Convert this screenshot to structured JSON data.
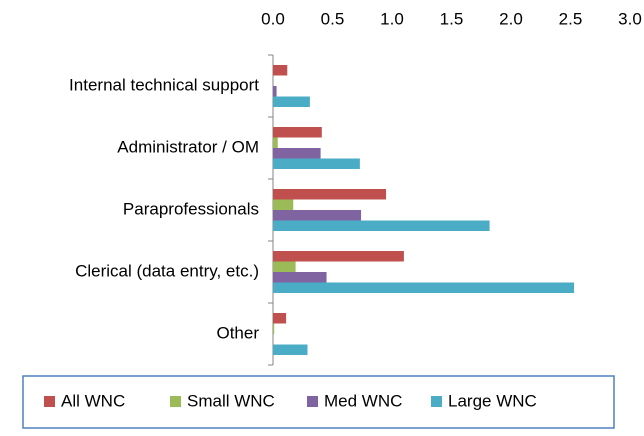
{
  "chart_data": {
    "type": "hbar",
    "categories": [
      "Internal technical support",
      "Administrator / OM",
      "Paraprofessionals",
      "Clerical (data entry, etc.)",
      "Other"
    ],
    "series": [
      {
        "name": "All WNC",
        "color": "#c0504d",
        "values": [
          0.12,
          0.41,
          0.95,
          1.1,
          0.11
        ]
      },
      {
        "name": "Small WNC",
        "color": "#9bbb59",
        "values": [
          0,
          0.04,
          0.17,
          0.19,
          0.01
        ]
      },
      {
        "name": "Med WNC",
        "color": "#8064a2",
        "values": [
          0.03,
          0.4,
          0.74,
          0.45,
          0
        ]
      },
      {
        "name": "Large WNC",
        "color": "#4bacc6",
        "values": [
          0.31,
          0.73,
          1.82,
          2.53,
          0.29
        ]
      }
    ],
    "xlim": [
      0,
      3
    ],
    "xticks": [
      {
        "value": 0,
        "label": "0.0"
      },
      {
        "value": 0.5,
        "label": "0.5"
      },
      {
        "value": 1,
        "label": "1.0"
      },
      {
        "value": 1.5,
        "label": "1.5"
      },
      {
        "value": 2,
        "label": "2.0"
      },
      {
        "value": 2.5,
        "label": "2.5"
      },
      {
        "value": 3,
        "label": "3.0"
      }
    ],
    "grid": false,
    "legend": "bottom"
  }
}
